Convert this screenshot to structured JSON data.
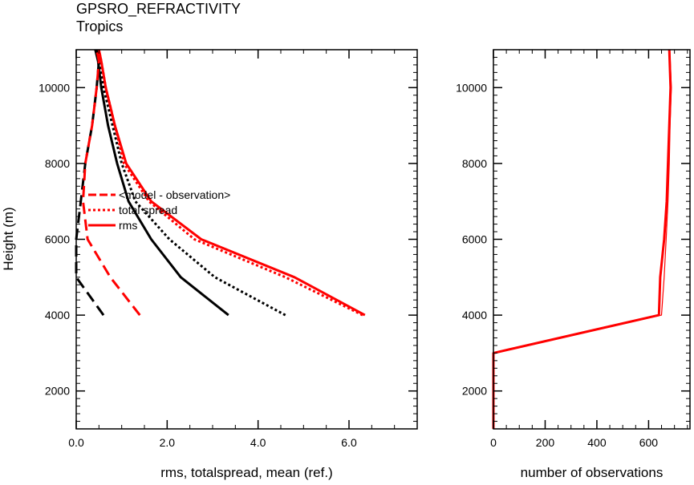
{
  "header": {
    "title": "GPSRO_REFRACTIVITY",
    "subtitle": "Tropics"
  },
  "chart_data": [
    {
      "type": "line",
      "xlabel": "rms, totalspread, mean (ref.)",
      "ylabel": "Height (m)",
      "xlim": [
        0,
        7.5
      ],
      "ylim": [
        1000,
        11000
      ],
      "x_major_ticks": [
        0,
        2,
        4,
        6
      ],
      "x_tick_labels": [
        "0.0",
        "2.0",
        "4.0",
        "6.0"
      ],
      "y_major_ticks": [
        2000,
        4000,
        6000,
        8000,
        10000
      ],
      "y_tick_labels": [
        "2000",
        "4000",
        "6000",
        "8000",
        "10000"
      ],
      "grid": false,
      "legend": {
        "placement": "left-middle",
        "entries": [
          {
            "label": "<model - observation>",
            "style": "dashed",
            "color": "#ff0000"
          },
          {
            "label": "total spread",
            "style": "dotted",
            "color": "#ff0000"
          },
          {
            "label": "rms",
            "style": "solid",
            "color": "#ff0000"
          }
        ]
      },
      "series": [
        {
          "color": "#000000",
          "style": "dashed",
          "points": [
            [
              0.6,
              4000
            ],
            [
              0.0,
              5000
            ],
            [
              0.0,
              6000
            ],
            [
              0.1,
              7000
            ],
            [
              0.2,
              8000
            ],
            [
              0.35,
              9000
            ],
            [
              0.45,
              10000
            ],
            [
              0.5,
              10700
            ],
            [
              0.45,
              11000
            ]
          ]
        },
        {
          "color": "#000000",
          "style": "dotted",
          "points": [
            [
              4.6,
              4000
            ],
            [
              3.05,
              5000
            ],
            [
              2.05,
              6000
            ],
            [
              1.3,
              7000
            ],
            [
              1.0,
              8000
            ],
            [
              0.8,
              9000
            ],
            [
              0.6,
              10000
            ],
            [
              0.5,
              10700
            ],
            [
              0.45,
              11000
            ]
          ]
        },
        {
          "color": "#000000",
          "style": "solid",
          "points": [
            [
              3.35,
              4000
            ],
            [
              2.3,
              5000
            ],
            [
              1.65,
              6000
            ],
            [
              1.15,
              7000
            ],
            [
              0.9,
              8000
            ],
            [
              0.7,
              9000
            ],
            [
              0.55,
              10000
            ],
            [
              0.48,
              10700
            ],
            [
              0.42,
              11000
            ]
          ]
        },
        {
          "color": "#ff0000",
          "style": "dashed",
          "points": [
            [
              1.4,
              4000
            ],
            [
              0.75,
              5000
            ],
            [
              0.25,
              6000
            ],
            [
              0.15,
              7000
            ],
            [
              0.2,
              8000
            ],
            [
              0.35,
              9000
            ],
            [
              0.45,
              10000
            ],
            [
              0.5,
              10700
            ],
            [
              0.45,
              11000
            ]
          ]
        },
        {
          "color": "#ff0000",
          "style": "dotted",
          "points": [
            [
              6.3,
              4000
            ],
            [
              4.6,
              5000
            ],
            [
              2.6,
              6000
            ],
            [
              1.6,
              7000
            ],
            [
              1.05,
              8000
            ],
            [
              0.85,
              9000
            ],
            [
              0.65,
              10000
            ],
            [
              0.55,
              10700
            ],
            [
              0.5,
              11000
            ]
          ]
        },
        {
          "color": "#ff0000",
          "style": "solid",
          "points": [
            [
              6.35,
              4000
            ],
            [
              4.8,
              5000
            ],
            [
              2.75,
              6000
            ],
            [
              1.65,
              7000
            ],
            [
              1.1,
              8000
            ],
            [
              0.85,
              9000
            ],
            [
              0.65,
              10000
            ],
            [
              0.55,
              10700
            ],
            [
              0.5,
              11000
            ]
          ]
        }
      ]
    },
    {
      "type": "line",
      "xlabel": "number of observations",
      "xlim": [
        0,
        760
      ],
      "ylim": [
        1000,
        11000
      ],
      "x_major_ticks": [
        0,
        200,
        400,
        600
      ],
      "x_tick_labels": [
        "0",
        "200",
        "400",
        "600"
      ],
      "y_major_ticks": [
        2000,
        4000,
        6000,
        8000,
        10000
      ],
      "y_tick_labels": [
        "2000",
        "4000",
        "6000",
        "8000",
        "10000"
      ],
      "grid": false,
      "series": [
        {
          "color": "#ff0000",
          "style": "solid",
          "width": 3,
          "points": [
            [
              0,
              1000
            ],
            [
              0,
              3000
            ],
            [
              640,
              4000
            ],
            [
              645,
              5000
            ],
            [
              660,
              6000
            ],
            [
              670,
              7000
            ],
            [
              675,
              8000
            ],
            [
              680,
              9000
            ],
            [
              685,
              10000
            ],
            [
              680,
              11000
            ]
          ]
        },
        {
          "color": "#ff0000",
          "style": "solid",
          "width": 1.2,
          "points": [
            [
              0,
              1000
            ],
            [
              0,
              3000
            ],
            [
              650,
              4000
            ],
            [
              660,
              5000
            ],
            [
              668,
              6000
            ],
            [
              675,
              7000
            ],
            [
              680,
              8000
            ],
            [
              683,
              9000
            ],
            [
              688,
              10000
            ],
            [
              682,
              11000
            ]
          ]
        }
      ]
    }
  ]
}
